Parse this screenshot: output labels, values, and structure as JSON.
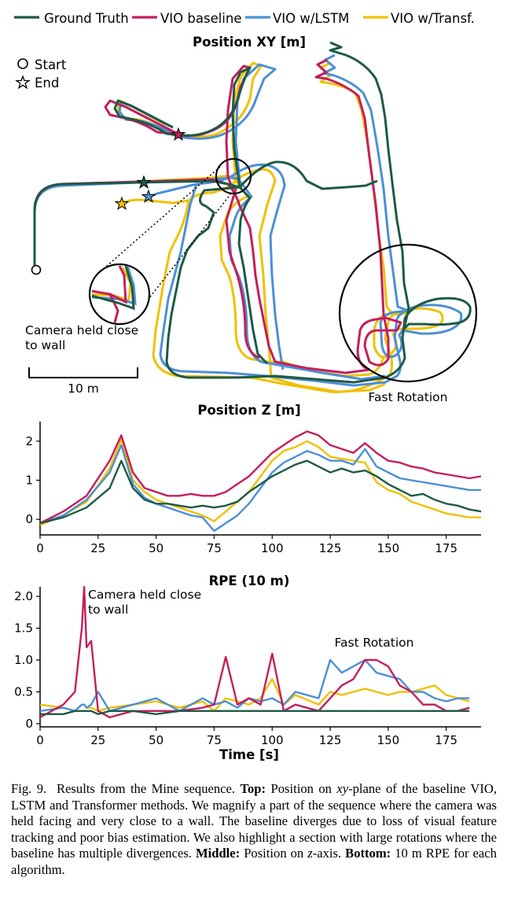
{
  "colors": {
    "ground_truth": "#1e5a46",
    "vio_baseline": "#c41e5c",
    "vio_lstm": "#4c8fd6",
    "vio_transf": "#f0c000"
  },
  "legend": [
    {
      "key": "ground_truth",
      "label": "Ground Truth"
    },
    {
      "key": "vio_baseline",
      "label": "VIO baseline"
    },
    {
      "key": "vio_lstm",
      "label": "VIO w/LSTM"
    },
    {
      "key": "vio_transf",
      "label": "VIO w/Transf."
    }
  ],
  "chart_data": [
    {
      "type": "line",
      "title": "Position XY [m]",
      "markers": {
        "start": "Start",
        "end": "End"
      },
      "annotations": [
        "Camera held close to wall",
        "Fast Rotation"
      ],
      "scale_bar": "10 m",
      "series": [
        {
          "name": "Ground Truth"
        },
        {
          "name": "VIO baseline"
        },
        {
          "name": "VIO w/LSTM"
        },
        {
          "name": "VIO w/Transf."
        }
      ]
    },
    {
      "type": "line",
      "title": "Position Z [m]",
      "xlim": [
        0,
        190
      ],
      "ylim": [
        -0.4,
        2.5
      ],
      "xticks": [
        0,
        25,
        50,
        75,
        100,
        125,
        150,
        175
      ],
      "yticks": [
        0,
        1,
        2
      ],
      "x": [
        0,
        10,
        20,
        30,
        35,
        40,
        45,
        50,
        55,
        60,
        65,
        70,
        75,
        80,
        85,
        90,
        95,
        100,
        105,
        110,
        115,
        120,
        125,
        130,
        135,
        140,
        145,
        150,
        155,
        160,
        165,
        170,
        175,
        180,
        185,
        190
      ],
      "series": [
        {
          "name": "Ground Truth",
          "values": [
            -0.1,
            0.05,
            0.3,
            0.8,
            1.5,
            0.8,
            0.5,
            0.4,
            0.4,
            0.35,
            0.3,
            0.35,
            0.3,
            0.35,
            0.45,
            0.7,
            0.9,
            1.1,
            1.25,
            1.4,
            1.5,
            1.35,
            1.2,
            1.3,
            1.2,
            1.25,
            1.1,
            0.9,
            0.75,
            0.6,
            0.65,
            0.5,
            0.4,
            0.35,
            0.25,
            0.2
          ]
        },
        {
          "name": "VIO baseline",
          "values": [
            -0.1,
            0.2,
            0.6,
            1.5,
            2.15,
            1.2,
            0.8,
            0.7,
            0.6,
            0.6,
            0.65,
            0.6,
            0.6,
            0.7,
            0.9,
            1.1,
            1.4,
            1.7,
            1.9,
            2.1,
            2.25,
            2.15,
            1.9,
            1.8,
            1.7,
            1.95,
            1.7,
            1.5,
            1.45,
            1.35,
            1.3,
            1.2,
            1.15,
            1.1,
            1.05,
            1.1
          ]
        },
        {
          "name": "VIO w/LSTM",
          "values": [
            -0.1,
            0.1,
            0.5,
            1.2,
            1.9,
            0.9,
            0.55,
            0.4,
            0.3,
            0.2,
            0.1,
            0.05,
            -0.3,
            -0.1,
            0.1,
            0.4,
            0.8,
            1.2,
            1.45,
            1.6,
            1.75,
            1.65,
            1.5,
            1.5,
            1.4,
            1.8,
            1.35,
            1.2,
            1.05,
            1.0,
            0.95,
            0.9,
            0.85,
            0.8,
            0.75,
            0.75
          ]
        },
        {
          "name": "VIO w/Transf.",
          "values": [
            -0.15,
            0.1,
            0.45,
            1.3,
            2.05,
            1.0,
            0.7,
            0.5,
            0.4,
            0.3,
            0.2,
            0.1,
            -0.05,
            0.2,
            0.45,
            0.7,
            1.1,
            1.5,
            1.75,
            1.85,
            2.0,
            1.85,
            1.6,
            1.55,
            1.5,
            1.45,
            0.95,
            0.75,
            0.65,
            0.45,
            0.35,
            0.25,
            0.15,
            0.1,
            0.05,
            0.05
          ]
        }
      ]
    },
    {
      "type": "line",
      "title": "RPE (10 m)",
      "xlabel": "Time [s]",
      "xlim": [
        0,
        190
      ],
      "ylim": [
        -0.05,
        2.15
      ],
      "xticks": [
        0,
        25,
        50,
        75,
        100,
        125,
        150,
        175
      ],
      "yticks": [
        0,
        0.5,
        1.0,
        1.5,
        2.0
      ],
      "ytick_labels": [
        "0",
        "0.5",
        "1.0",
        "1.5",
        "2.0"
      ],
      "annotations": [
        "Camera held close to wall",
        "Fast Rotation"
      ],
      "x": [
        0,
        10,
        15,
        18,
        19,
        20,
        22,
        25,
        30,
        40,
        50,
        60,
        70,
        75,
        80,
        85,
        90,
        95,
        100,
        105,
        110,
        120,
        125,
        130,
        135,
        140,
        145,
        150,
        155,
        160,
        165,
        170,
        175,
        180,
        185
      ],
      "series": [
        {
          "name": "Ground Truth",
          "values": [
            0.15,
            0.15,
            0.2,
            0.2,
            0.2,
            0.2,
            0.2,
            0.15,
            0.2,
            0.2,
            0.15,
            0.2,
            0.2,
            0.2,
            0.2,
            0.2,
            0.2,
            0.2,
            0.2,
            0.2,
            0.2,
            0.2,
            0.2,
            0.2,
            0.2,
            0.2,
            0.2,
            0.2,
            0.2,
            0.2,
            0.2,
            0.2,
            0.2,
            0.2,
            0.2
          ]
        },
        {
          "name": "VIO baseline",
          "values": [
            0.1,
            0.3,
            0.5,
            1.5,
            2.15,
            1.2,
            1.3,
            0.2,
            0.1,
            0.2,
            0.2,
            0.2,
            0.25,
            0.3,
            1.05,
            0.3,
            0.4,
            0.3,
            1.1,
            0.2,
            0.3,
            0.2,
            0.4,
            0.6,
            0.7,
            1.0,
            1.0,
            0.9,
            0.6,
            0.5,
            0.3,
            0.3,
            0.2,
            0.2,
            0.25
          ]
        },
        {
          "name": "VIO w/LSTM",
          "values": [
            0.2,
            0.25,
            0.2,
            0.3,
            0.3,
            0.25,
            0.3,
            0.5,
            0.2,
            0.3,
            0.4,
            0.2,
            0.4,
            0.3,
            0.35,
            0.25,
            0.4,
            0.35,
            0.4,
            0.3,
            0.5,
            0.4,
            1.0,
            0.8,
            0.9,
            1.0,
            0.8,
            0.75,
            0.7,
            0.5,
            0.5,
            0.4,
            0.35,
            0.4,
            0.4
          ]
        },
        {
          "name": "VIO w/Transf.",
          "values": [
            0.3,
            0.25,
            0.2,
            0.3,
            0.3,
            0.25,
            0.25,
            0.2,
            0.25,
            0.3,
            0.35,
            0.25,
            0.35,
            0.2,
            0.4,
            0.35,
            0.3,
            0.4,
            0.7,
            0.3,
            0.45,
            0.3,
            0.5,
            0.45,
            0.5,
            0.55,
            0.5,
            0.45,
            0.5,
            0.5,
            0.55,
            0.6,
            0.45,
            0.4,
            0.35
          ]
        }
      ]
    }
  ],
  "caption": {
    "prefix": "Fig. 9.",
    "intro": "Results from the Mine sequence.",
    "top_label": "Top:",
    "top_text_a": "Position on",
    "top_text_b": "-plane of the baseline VIO, LSTM and Transformer methods. We magnify a part of the sequence where the camera was held facing and very close to a wall. The baseline diverges due to loss of visual feature tracking and poor bias estimation. We also highlight a section with large rotations where the baseline has multiple divergences.",
    "xy": "xy",
    "middle_label": "Middle:",
    "middle_text_a": "Position on",
    "z": "z",
    "middle_text_b": "-axis.",
    "bottom_label": "Bottom:",
    "bottom_text": "10 m RPE for each algorithm."
  }
}
